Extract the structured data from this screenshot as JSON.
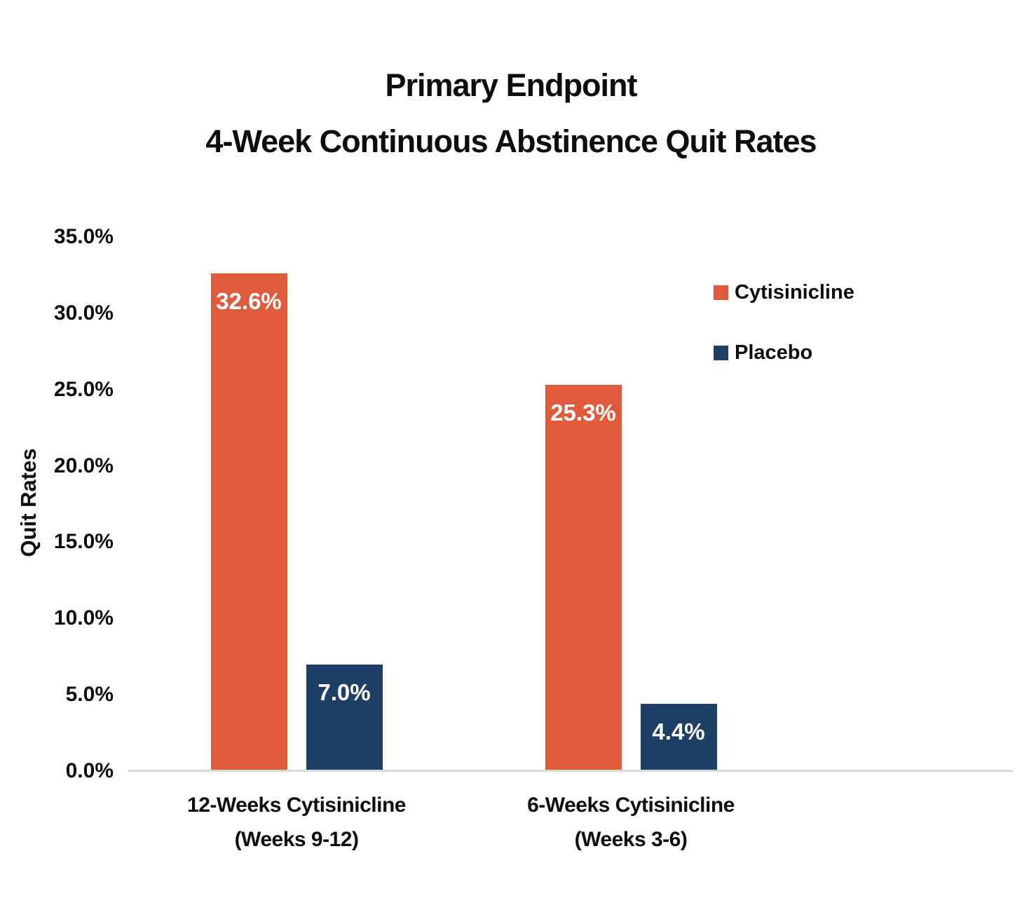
{
  "title": {
    "line1": "Primary Endpoint",
    "line2": "4-Week Continuous Abstinence Quit Rates"
  },
  "chart_data": {
    "type": "bar",
    "title": "Primary Endpoint 4-Week Continuous Abstinence Quit Rates",
    "xlabel": "",
    "ylabel": "Quit Rates",
    "ylim": [
      0,
      35
    ],
    "grid": false,
    "legend_position": "right",
    "yticks": [
      {
        "v": 35,
        "label": "35.0%"
      },
      {
        "v": 30,
        "label": "30.0%"
      },
      {
        "v": 25,
        "label": "25.0%"
      },
      {
        "v": 20,
        "label": "20.0%"
      },
      {
        "v": 15,
        "label": "15.0%"
      },
      {
        "v": 10,
        "label": "10.0%"
      },
      {
        "v": 5,
        "label": "5.0%"
      },
      {
        "v": 0,
        "label": "0.0%"
      }
    ],
    "categories": [
      {
        "line1": "12-Weeks Cytisinicline",
        "line2": "(Weeks 9-12)"
      },
      {
        "line1": "6-Weeks Cytisinicline",
        "line2": "(Weeks 3-6)"
      }
    ],
    "series": [
      {
        "name": "Cytisinicline",
        "color": "#e05a3c",
        "values": [
          32.6,
          25.3
        ],
        "value_labels": [
          "32.6%",
          "25.3%"
        ]
      },
      {
        "name": "Placebo",
        "color": "#1f4066",
        "values": [
          7.0,
          4.4
        ],
        "value_labels": [
          "7.0%",
          "4.4%"
        ]
      }
    ]
  },
  "colors": {
    "cytisinicline": "#e05a3c",
    "placebo": "#1f4066",
    "axis_line": "#d9d9d9",
    "text": "#0d0d0d",
    "value_label_text": "#ffffff"
  }
}
